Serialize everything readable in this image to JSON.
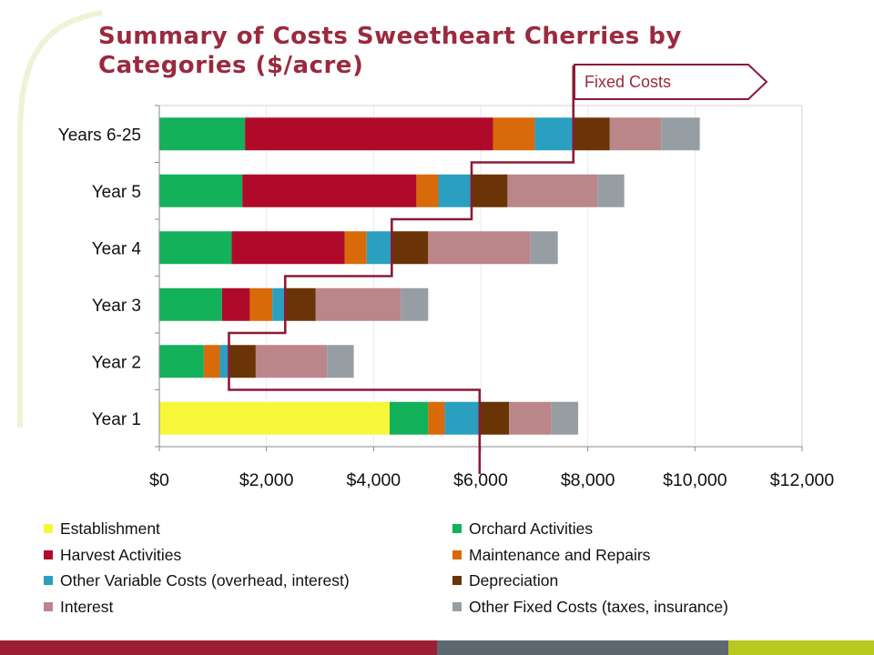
{
  "title": "Summary of Costs Sweetheart Cherries by Categories ($/acre)",
  "callout": {
    "label": "Fixed Costs"
  },
  "colors": {
    "title": "#9a2a3f",
    "callout_border": "#8b1a36",
    "footer": [
      "#9a1f35",
      "#5d6770",
      "#b7c81e"
    ],
    "arc": "#eef3d5"
  },
  "chart_data": {
    "type": "bar",
    "orientation": "horizontal",
    "stacked": true,
    "categories": [
      "Years 6-25",
      "Year 5",
      "Year 4",
      "Year 3",
      "Year 2",
      "Year 1"
    ],
    "xlim": [
      0,
      12000
    ],
    "xticks": [
      "$0",
      "$2,000",
      "$4,000",
      "$6,000",
      "$8,000",
      "$10,000",
      "$12,000"
    ],
    "xtick_values": [
      0,
      2000,
      4000,
      6000,
      8000,
      10000,
      12000
    ],
    "grid": "vertical",
    "legend_position": "bottom",
    "series": [
      {
        "name": "Establishment",
        "color": "#f7f73a",
        "values": [
          0,
          0,
          0,
          0,
          0,
          4300
        ]
      },
      {
        "name": "Orchard Activities",
        "color": "#12b15a",
        "values": [
          1600,
          1550,
          1350,
          1170,
          830,
          720
        ]
      },
      {
        "name": "Harvest Activities",
        "color": "#b00a2a",
        "values": [
          4630,
          3250,
          2110,
          520,
          0,
          0
        ]
      },
      {
        "name": "Maintenance and Repairs",
        "color": "#d96a0a",
        "values": [
          780,
          410,
          410,
          420,
          300,
          310
        ]
      },
      {
        "name": "Other Variable Costs (overhead, interest)",
        "color": "#2b9fbf",
        "values": [
          720,
          620,
          470,
          240,
          170,
          650
        ]
      },
      {
        "name": "Depreciation",
        "color": "#6a3406",
        "values": [
          680,
          670,
          680,
          570,
          500,
          550
        ]
      },
      {
        "name": "Interest",
        "color": "#bb868a",
        "values": [
          960,
          1680,
          1910,
          1590,
          1330,
          790
        ]
      },
      {
        "name": "Other Fixed Costs (taxes, insurance)",
        "color": "#969ea3",
        "values": [
          720,
          500,
          510,
          510,
          500,
          500
        ]
      }
    ]
  }
}
